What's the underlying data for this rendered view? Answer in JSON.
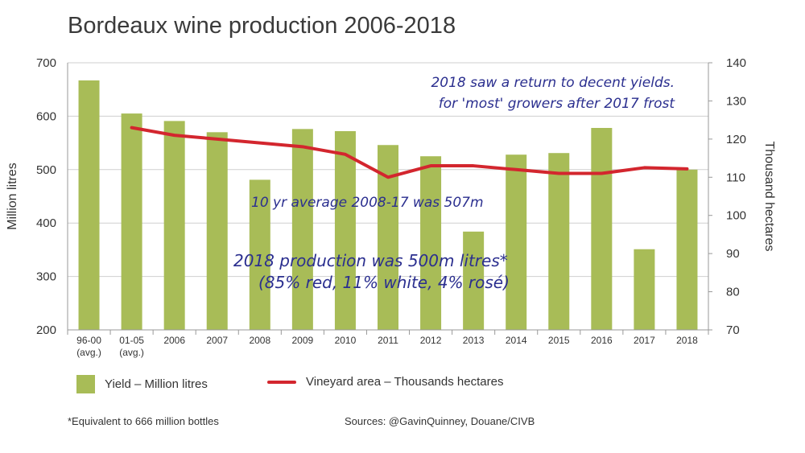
{
  "chart_data": {
    "type": "bar",
    "title": "Bordeaux wine production 2006-2018",
    "categories": [
      {
        "line1": "96-00",
        "line2": "(avg.)"
      },
      {
        "line1": "01-05",
        "line2": "(avg.)"
      },
      {
        "line1": "2006",
        "line2": ""
      },
      {
        "line1": "2007",
        "line2": ""
      },
      {
        "line1": "2008",
        "line2": ""
      },
      {
        "line1": "2009",
        "line2": ""
      },
      {
        "line1": "2010",
        "line2": ""
      },
      {
        "line1": "2011",
        "line2": ""
      },
      {
        "line1": "2012",
        "line2": ""
      },
      {
        "line1": "2013",
        "line2": ""
      },
      {
        "line1": "2014",
        "line2": ""
      },
      {
        "line1": "2015",
        "line2": ""
      },
      {
        "line1": "2016",
        "line2": ""
      },
      {
        "line1": "2017",
        "line2": ""
      },
      {
        "line1": "2018",
        "line2": ""
      }
    ],
    "series": [
      {
        "name": "Yield - Million litres",
        "type": "bar",
        "axis": "left",
        "color": "#a8bc57",
        "values": [
          667,
          605,
          591,
          570,
          481,
          576,
          572,
          546,
          525,
          384,
          528,
          531,
          578,
          351,
          500
        ]
      },
      {
        "name": "Vineyard area - Thousands hectares",
        "type": "line",
        "axis": "right",
        "color": "#d3262e",
        "values": [
          null,
          123,
          121,
          120,
          119,
          118,
          116,
          110,
          113,
          113,
          112,
          111,
          111,
          112.5,
          112.2
        ]
      }
    ],
    "ylabel": "Million litres",
    "ylim": [
      200,
      700
    ],
    "yticks": [
      200,
      300,
      400,
      500,
      600,
      700
    ],
    "y2label": "Thousand hectares",
    "y2lim": [
      70,
      140
    ],
    "y2ticks": [
      70,
      80,
      90,
      100,
      110,
      120,
      130,
      140
    ],
    "grid": "horizontal",
    "legend_position": "bottom",
    "annotations": [
      "2018 saw a return to decent yields.",
      "for 'most' growers after 2017 frost",
      "10 yr average 2008-17 was 507m",
      "2018 production was 500m litres*",
      "(85% red, 11% white, 4% rosé)"
    ]
  },
  "legend": {
    "bar_label": "Yield – Million litres",
    "line_label": "Vineyard area – Thousands hectares"
  },
  "footnotes": {
    "left": "*Equivalent to 666 million bottles",
    "right": "Sources: @GavinQuinney, Douane/CIVB"
  }
}
